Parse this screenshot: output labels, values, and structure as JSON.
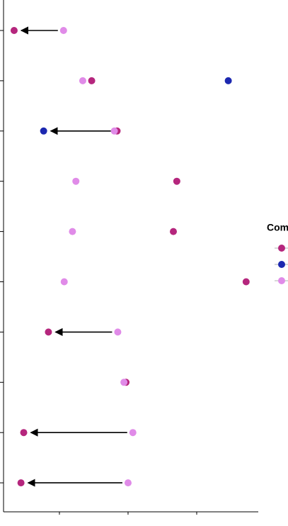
{
  "chart_data": {
    "type": "dumbbell",
    "legend_title": "Com",
    "categories": [
      null,
      null,
      null,
      null,
      null,
      null,
      null,
      null,
      null,
      null
    ],
    "series": [
      {
        "color": "#b5267d",
        "values": [
          0.34,
          1.47,
          1.84,
          2.71,
          2.66,
          3.72,
          0.84,
          1.97,
          0.48,
          0.44
        ]
      },
      {
        "color": "#1c28b0",
        "values": [
          null,
          3.46,
          0.77,
          null,
          null,
          null,
          null,
          null,
          null,
          null
        ]
      },
      {
        "color": "#e08be8",
        "values": [
          1.06,
          1.34,
          1.8,
          1.24,
          1.19,
          1.07,
          1.85,
          1.94,
          2.07,
          2.0
        ]
      }
    ],
    "arrows": [
      {
        "row": 0,
        "from": 2,
        "to": 0
      },
      {
        "row": 2,
        "from": 0,
        "to": 1
      },
      {
        "row": 6,
        "from": 2,
        "to": 0
      },
      {
        "row": 8,
        "from": 2,
        "to": 0
      },
      {
        "row": 9,
        "from": 2,
        "to": 0
      }
    ],
    "xlim": [
      0.186,
      3.897
    ],
    "xticks": [
      1,
      2,
      3
    ],
    "legend": "right"
  }
}
